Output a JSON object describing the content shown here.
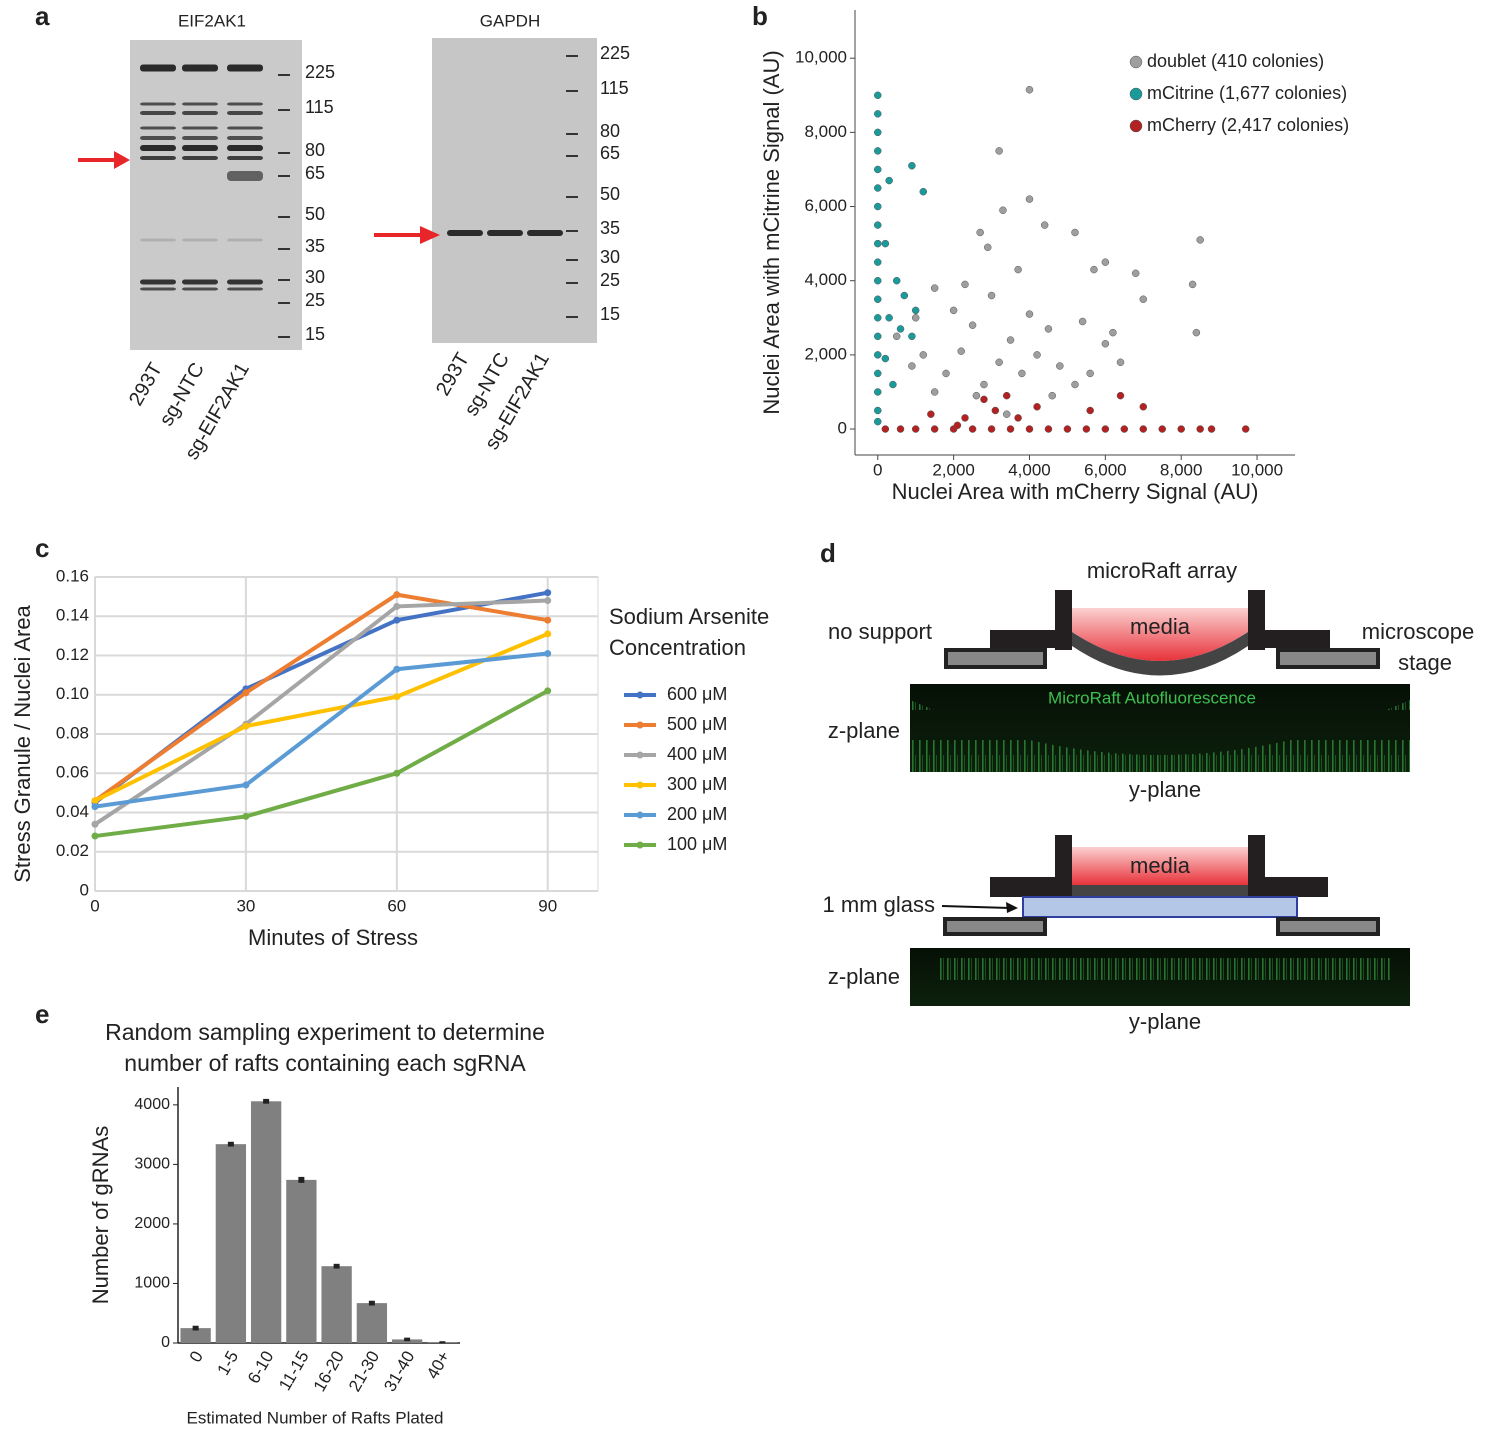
{
  "blot": {
    "label": "a",
    "panels": [
      {
        "title": "EIF2AK1",
        "ladder": [
          225,
          115,
          80,
          65,
          50,
          35,
          30,
          25,
          15
        ],
        "lanes": [
          "293T",
          "sg-NTC",
          "sg-EIF2AK1"
        ]
      },
      {
        "title": "GAPDH",
        "ladder": [
          225,
          115,
          80,
          65,
          50,
          35,
          30,
          25,
          15
        ],
        "lanes": [
          "293T",
          "sg-NTC",
          "sg-EIF2AK1"
        ]
      }
    ]
  },
  "chart_data": [
    {
      "type": "scatter",
      "panel": "b",
      "x_label": "Nuclei Area with mCherry Signal (AU)",
      "y_label": "Nuclei Area with mCitrine Signal (AU)",
      "xlim": [
        -600,
        11000
      ],
      "ylim": [
        -700,
        11300
      ],
      "xticks": [
        0,
        {
          "value": 2000,
          "label": "2,000"
        },
        {
          "value": 4000,
          "label": "4,000"
        },
        {
          "value": 6000,
          "label": "6,000"
        },
        {
          "value": 8000,
          "label": "8,000"
        },
        {
          "value": 10000,
          "label": "10,000"
        }
      ],
      "yticks": [
        0,
        {
          "value": 2000,
          "label": "2,000"
        },
        {
          "value": 4000,
          "label": "4,000"
        },
        {
          "value": 6000,
          "label": "6,000"
        },
        {
          "value": 8000,
          "label": "8,000"
        },
        {
          "value": 10000,
          "label": "10,000"
        }
      ],
      "series": [
        {
          "name": "doublet (410 colonies)",
          "color": "#9e9e9e",
          "x": [
            4000,
            3200,
            4000,
            3300,
            2700,
            5200,
            6000,
            5700,
            8500,
            8300,
            7000,
            6800,
            1500,
            2000,
            2500,
            3000,
            3500,
            4000,
            4500,
            1200,
            1800,
            2200,
            2800,
            3200,
            3800,
            4200,
            4800,
            5200,
            5600,
            6000,
            6200,
            500,
            900,
            1500,
            2600,
            3400,
            4600,
            5400,
            6400,
            8400,
            1000,
            2300,
            3700,
            2900,
            4400
          ],
          "values": [
            9150,
            7500,
            6200,
            5900,
            5300,
            5300,
            4500,
            4300,
            5100,
            3900,
            3500,
            4200,
            3800,
            3200,
            2800,
            3600,
            2400,
            3100,
            2700,
            2000,
            1500,
            2100,
            1200,
            1800,
            1500,
            2000,
            1700,
            1200,
            1500,
            2300,
            2600,
            2500,
            1700,
            1000,
            900,
            400,
            900,
            2900,
            1800,
            2600,
            3000,
            3900,
            4300,
            4900,
            5500
          ]
        },
        {
          "name": "mCitrine (1,677 colonies)",
          "color": "#1a9a9a",
          "x": [
            0,
            0,
            0,
            0,
            0,
            0,
            0,
            0,
            0,
            0,
            0,
            0,
            0,
            0,
            0,
            0,
            0,
            0,
            0,
            300,
            900,
            1200,
            200,
            500,
            700,
            300,
            600,
            900,
            200,
            400,
            1000
          ],
          "values": [
            9000,
            8500,
            8000,
            7500,
            7000,
            6500,
            6000,
            5500,
            5000,
            4500,
            4000,
            3500,
            3000,
            2500,
            2000,
            1500,
            1000,
            500,
            200,
            6700,
            7100,
            6400,
            5000,
            4000,
            3600,
            3000,
            2700,
            2500,
            1900,
            1200,
            3200
          ]
        },
        {
          "name": "mCherry (2,417 colonies)",
          "color": "#b22222",
          "x": [
            200,
            600,
            1000,
            1500,
            2000,
            2500,
            3000,
            3500,
            4000,
            4500,
            5000,
            5500,
            6000,
            6500,
            7000,
            7500,
            8000,
            8500,
            8800,
            9700,
            1400,
            2300,
            2800,
            3100,
            3700,
            4200,
            5600,
            6400,
            7000,
            3400,
            2100
          ],
          "values": [
            0,
            0,
            0,
            0,
            0,
            0,
            0,
            0,
            0,
            0,
            0,
            0,
            0,
            0,
            0,
            0,
            0,
            0,
            0,
            0,
            400,
            300,
            800,
            500,
            300,
            600,
            500,
            900,
            600,
            900,
            100
          ]
        }
      ]
    },
    {
      "type": "line",
      "panel": "c",
      "x_label": "Minutes of Stress",
      "y_label": "Stress Granule / Nuclei Area",
      "legend_title": [
        "Sodium Arsenite",
        "Concentration"
      ],
      "x": [
        0,
        30,
        60,
        90
      ],
      "xlim": [
        0,
        100
      ],
      "ylim": [
        0,
        0.16
      ],
      "xticks": [
        0,
        30,
        60,
        90
      ],
      "yticks": [
        0,
        0.02,
        0.04,
        0.06,
        0.08,
        {
          "value": 0.1,
          "label": "0.10"
        },
        0.12,
        0.14,
        0.16
      ],
      "grid": true,
      "series": [
        {
          "name": "600 μM",
          "color": "#4472c4",
          "values": [
            0.045,
            0.103,
            0.138,
            0.152
          ]
        },
        {
          "name": "500 μM",
          "color": "#ed7d31",
          "values": [
            0.046,
            0.101,
            0.151,
            0.138
          ]
        },
        {
          "name": "400 μM",
          "color": "#a5a5a5",
          "values": [
            0.034,
            0.085,
            0.145,
            0.148
          ]
        },
        {
          "name": "300 μM",
          "color": "#ffc000",
          "values": [
            0.046,
            0.084,
            0.099,
            0.131
          ]
        },
        {
          "name": "200 μM",
          "color": "#5b9bd5",
          "values": [
            0.043,
            0.054,
            0.113,
            0.121
          ]
        },
        {
          "name": "100 μM",
          "color": "#70ad47",
          "values": [
            0.028,
            0.038,
            0.06,
            0.102
          ]
        }
      ]
    },
    {
      "type": "bar",
      "panel": "e",
      "title": [
        "Random sampling experiment to determine",
        "number of rafts containing each sgRNA"
      ],
      "x_label": "Estimated Number of Rafts Plated",
      "y_label": "Number of gRNAs",
      "categories": [
        "0",
        "1-5",
        "6-10",
        "11-15",
        "16-20",
        "21-30",
        "31-40",
        "40+"
      ],
      "values": [
        250,
        3340,
        4060,
        2740,
        1290,
        670,
        60,
        10
      ],
      "errors": [
        40,
        40,
        40,
        50,
        40,
        40,
        30,
        20
      ],
      "color": "#808080",
      "ylim": [
        0,
        4300
      ],
      "yticks": [
        0,
        1000,
        2000,
        3000,
        4000
      ]
    }
  ],
  "diagram": {
    "label": "d",
    "title": "microRaft array",
    "top": {
      "left": "no support",
      "right": [
        "microscope",
        "stage"
      ],
      "media": "media",
      "fluor": "MicroRaft Autofluorescence",
      "z": "z-plane",
      "y": "y-plane"
    },
    "bottom": {
      "media": "media",
      "glass": "1 mm glass",
      "z": "z-plane",
      "y": "y-plane"
    }
  }
}
